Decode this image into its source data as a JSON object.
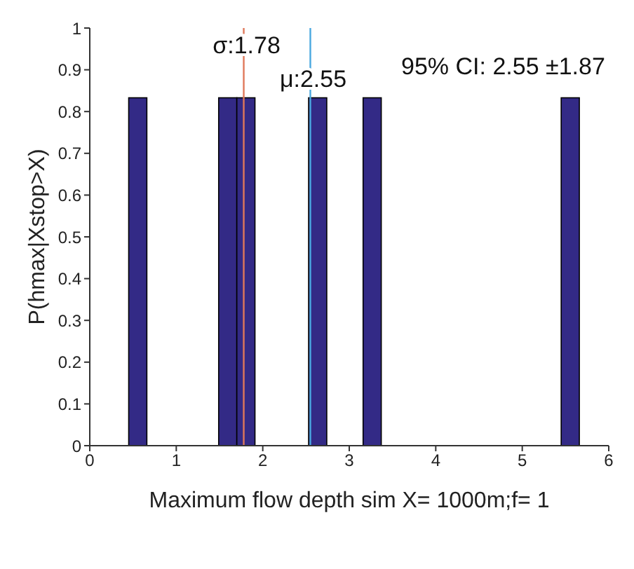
{
  "chart_data": {
    "type": "histogram",
    "xlabel": "Maximum flow depth sim X= 1000m;f= 1",
    "ylabel": "P(hmax|Xstop>X)",
    "bins": [
      0.45,
      0.66,
      1.49,
      1.7,
      1.91,
      2.53,
      2.74,
      3.16,
      3.37,
      5.45,
      5.66
    ],
    "values": [
      0.833,
      0,
      0.833,
      0.833,
      0,
      0.833,
      0,
      0.833,
      0,
      0.833
    ],
    "color": "#332a86",
    "xlim": [
      0,
      6
    ],
    "xticks": [
      0,
      1,
      2,
      3,
      4,
      5,
      6
    ],
    "ylim": [
      0,
      1
    ],
    "yticks": [
      0,
      0.1,
      0.2,
      0.3,
      0.4,
      0.5,
      0.6,
      0.7,
      0.8,
      0.9,
      1
    ],
    "grid": false,
    "ref_lines": [
      {
        "axis": "x",
        "value": 1.78,
        "label": "σ:1.78",
        "color": "#e0785a"
      },
      {
        "axis": "x",
        "value": 2.55,
        "label": "μ:2.55",
        "color": "#4aa8e0"
      }
    ],
    "annotations": [
      "95% CI: 2.55 ±1.87"
    ]
  }
}
